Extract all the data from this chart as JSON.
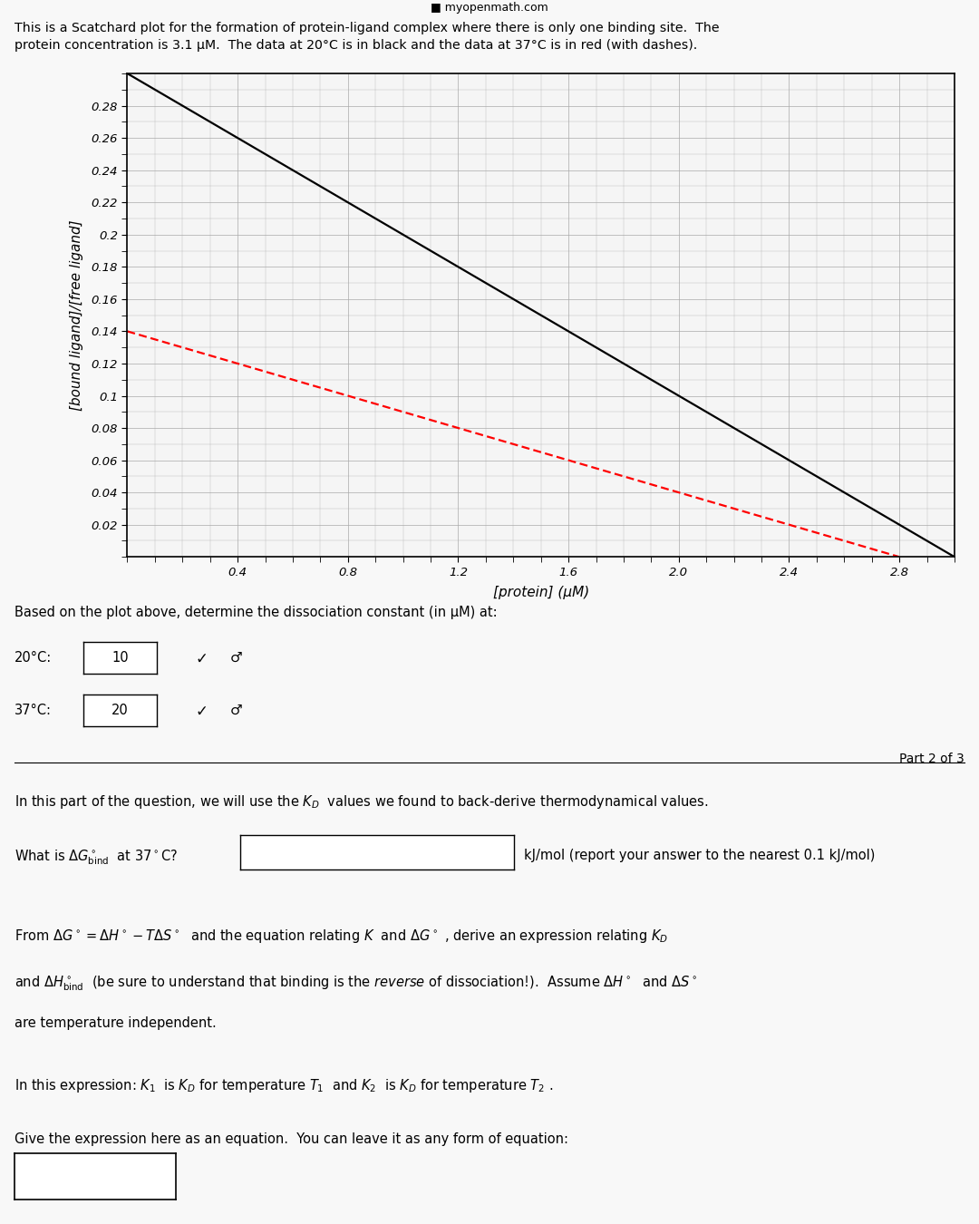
{
  "title_top": "■ myopenmath.com",
  "description_line1": "This is a Scatchard plot for the formation of protein-ligand complex where there is only one binding site.  The",
  "description_line2": "protein concentration is 3.1 μM.  The data at 20°C is in black and the data at 37°C is in red (with dashes).",
  "black_line": {
    "x": [
      0,
      3.0
    ],
    "y": [
      0.3,
      0.0
    ]
  },
  "red_line": {
    "x": [
      0,
      2.8
    ],
    "y": [
      0.14,
      0.0
    ]
  },
  "xlabel": "[protein] (μM)",
  "ylabel": "[bound ligand]/[free ligand]",
  "xlim": [
    0,
    3.0
  ],
  "ylim": [
    0,
    0.3
  ],
  "xticks": [
    0.4,
    0.8,
    1.2,
    1.6,
    2.0,
    2.4,
    2.8
  ],
  "yticks": [
    0.02,
    0.04,
    0.06,
    0.08,
    0.1,
    0.12,
    0.14,
    0.16,
    0.18,
    0.2,
    0.22,
    0.24,
    0.26,
    0.28
  ],
  "grid_color": "#aaaaaa",
  "background_color": "#f5f5f5",
  "part2_text": "Part 2 of 3",
  "temp1_label": "20°C:",
  "temp1_value": "10",
  "temp2_label": "37°C:",
  "temp2_value": "20"
}
